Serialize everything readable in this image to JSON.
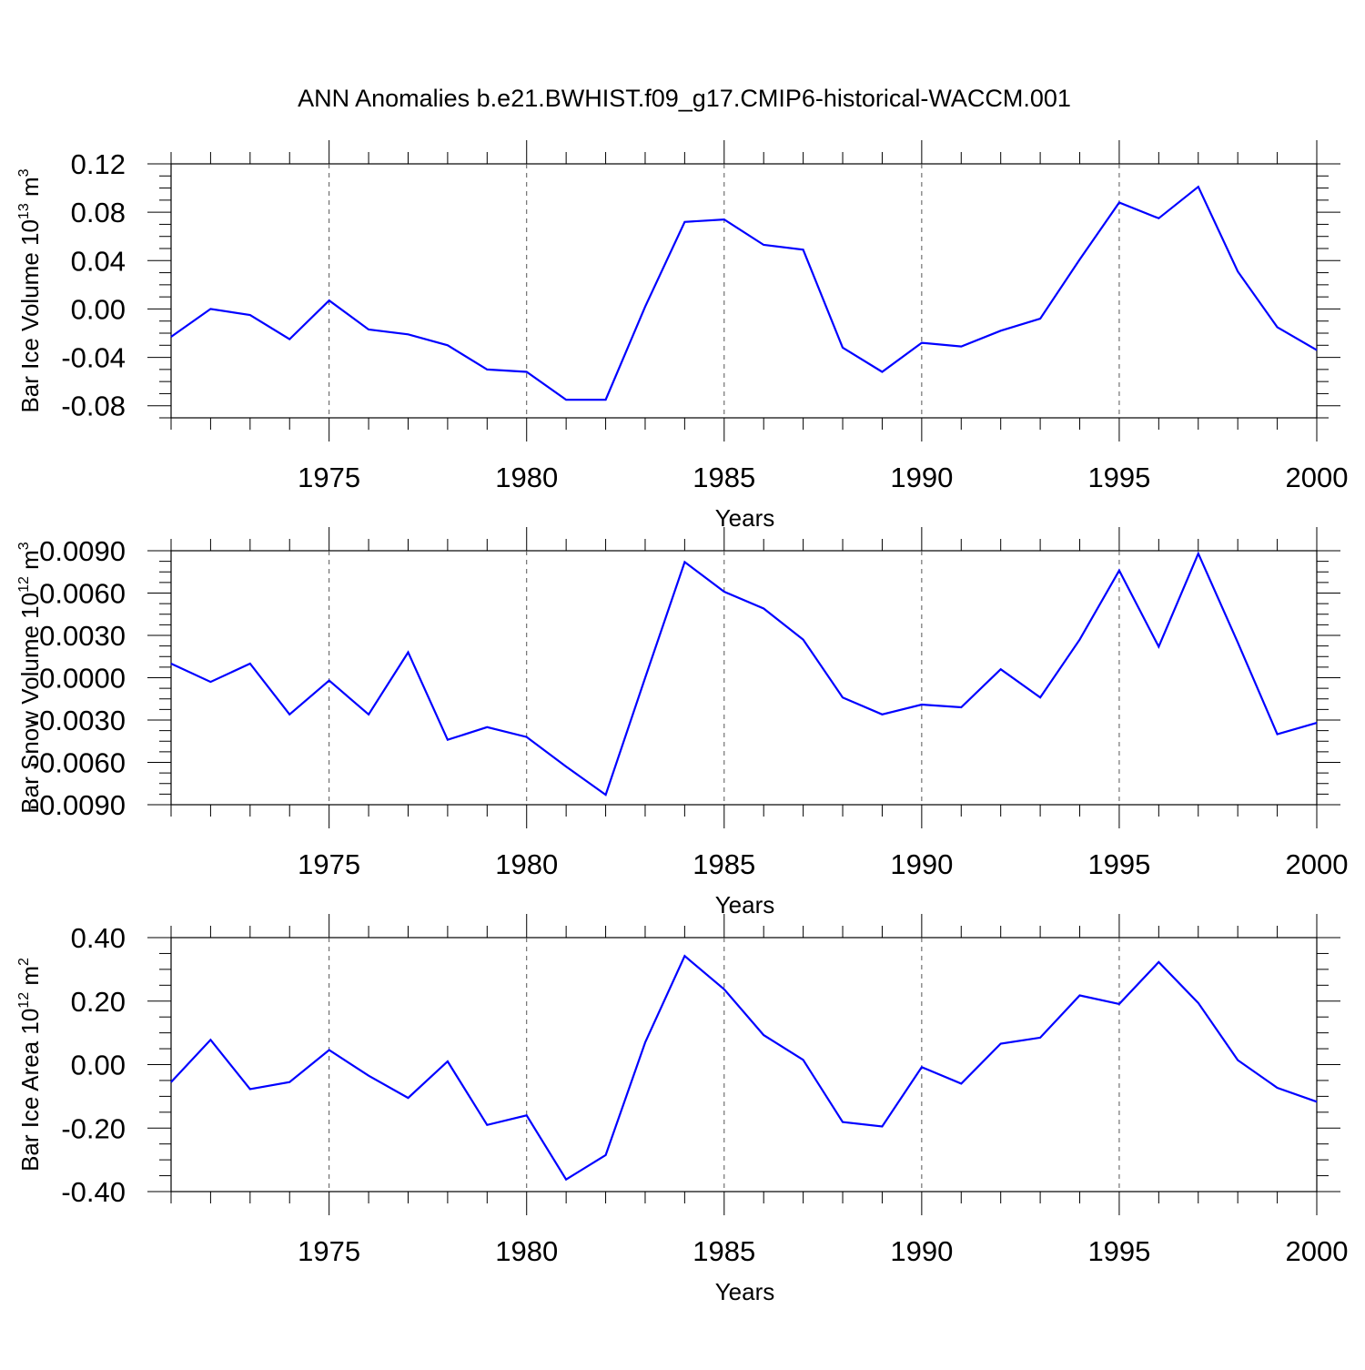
{
  "title": "ANN Anomalies b.e21.BWHIST.f09_g17.CMIP6-historical-WACCM.001",
  "chart_data": [
    {
      "type": "line",
      "ylabel": {
        "main": "Bar Ice Volume 10",
        "exp": "13",
        "unit": " m",
        "unit_exp": "3"
      },
      "xlabel": "Years",
      "xlim": [
        1971,
        2000
      ],
      "ylim": [
        -0.09,
        0.12
      ],
      "yticks": [
        -0.08,
        -0.04,
        0.0,
        0.04,
        0.08,
        0.12
      ],
      "ytick_labels": [
        "-0.08",
        "-0.04",
        "0.00",
        "0.04",
        "0.08",
        "0.12"
      ],
      "xticks": [
        1975,
        1980,
        1985,
        1990,
        1995,
        2000
      ],
      "xtick_labels": [
        "1975",
        "1980",
        "1985",
        "1990",
        "1995",
        "2000"
      ],
      "grid": "vertical dashed at major x ticks",
      "line_color": "#0000ff",
      "series": [
        {
          "x": [
            1971,
            1972,
            1973,
            1974,
            1975,
            1976,
            1977,
            1978,
            1979,
            1980,
            1981,
            1982,
            1983,
            1984,
            1985,
            1986,
            1987,
            1988,
            1989,
            1990,
            1991,
            1992,
            1993,
            1994,
            1995,
            1996,
            1997,
            1998,
            1999,
            2000
          ],
          "y": [
            -0.023,
            0.0,
            -0.005,
            -0.025,
            0.007,
            -0.017,
            -0.021,
            -0.03,
            -0.05,
            -0.052,
            -0.075,
            -0.075,
            0.002,
            0.072,
            0.074,
            0.053,
            0.049,
            -0.032,
            -0.052,
            -0.028,
            -0.031,
            -0.018,
            -0.008,
            0.041,
            0.088,
            0.075,
            0.101,
            0.031,
            -0.015,
            -0.034
          ]
        }
      ]
    },
    {
      "type": "line",
      "ylabel": {
        "main": "Bar Snow Volume 10",
        "exp": "12",
        "unit": " m",
        "unit_exp": "3"
      },
      "xlabel": "Years",
      "xlim": [
        1971,
        2000
      ],
      "ylim": [
        -0.009,
        0.009
      ],
      "yticks": [
        -0.009,
        -0.006,
        -0.003,
        0.0,
        0.003,
        0.006,
        0.009
      ],
      "ytick_labels": [
        "-0.0090",
        "-0.0060",
        "-0.0030",
        "0.0000",
        "0.0030",
        "0.0060",
        "0.0090"
      ],
      "xticks": [
        1975,
        1980,
        1985,
        1990,
        1995,
        2000
      ],
      "xtick_labels": [
        "1975",
        "1980",
        "1985",
        "1990",
        "1995",
        "2000"
      ],
      "grid": "vertical dashed at major x ticks",
      "line_color": "#0000ff",
      "series": [
        {
          "x": [
            1971,
            1972,
            1973,
            1974,
            1975,
            1976,
            1977,
            1978,
            1979,
            1980,
            1981,
            1982,
            1983,
            1984,
            1985,
            1986,
            1987,
            1988,
            1989,
            1990,
            1991,
            1992,
            1993,
            1994,
            1995,
            1996,
            1997,
            1998,
            1999,
            2000
          ],
          "y": [
            0.001,
            -0.0003,
            0.001,
            -0.0026,
            -0.0002,
            -0.0026,
            0.0018,
            -0.0044,
            -0.0035,
            -0.0042,
            -0.0063,
            -0.0083,
            0.0,
            0.0082,
            0.0061,
            0.0049,
            0.0027,
            -0.0014,
            -0.0026,
            -0.0019,
            -0.0021,
            0.0006,
            -0.0014,
            0.0027,
            0.0076,
            0.0022,
            0.0088,
            0.0025,
            -0.004,
            -0.0032
          ]
        }
      ]
    },
    {
      "type": "line",
      "ylabel": {
        "main": "Bar Ice Area 10",
        "exp": "12",
        "unit": " m",
        "unit_exp": "2"
      },
      "xlabel": "Years",
      "xlim": [
        1971,
        2000
      ],
      "ylim": [
        -0.4,
        0.4
      ],
      "yticks": [
        -0.4,
        -0.2,
        0.0,
        0.2,
        0.4
      ],
      "ytick_labels": [
        "-0.40",
        "-0.20",
        "0.00",
        "0.20",
        "0.40"
      ],
      "xticks": [
        1975,
        1980,
        1985,
        1990,
        1995,
        2000
      ],
      "xtick_labels": [
        "1975",
        "1980",
        "1985",
        "1990",
        "1995",
        "2000"
      ],
      "grid": "vertical dashed at major x ticks",
      "line_color": "#0000ff",
      "series": [
        {
          "x": [
            1971,
            1972,
            1973,
            1974,
            1975,
            1976,
            1977,
            1978,
            1979,
            1980,
            1981,
            1982,
            1983,
            1984,
            1985,
            1986,
            1987,
            1988,
            1989,
            1990,
            1991,
            1992,
            1993,
            1994,
            1995,
            1996,
            1997,
            1998,
            1999,
            2000
          ],
          "y": [
            -0.055,
            0.078,
            -0.077,
            -0.055,
            0.046,
            -0.035,
            -0.105,
            0.01,
            -0.19,
            -0.16,
            -0.362,
            -0.285,
            0.07,
            0.342,
            0.237,
            0.093,
            0.015,
            -0.181,
            -0.195,
            -0.008,
            -0.06,
            0.066,
            0.085,
            0.218,
            0.191,
            0.323,
            0.194,
            0.014,
            -0.073,
            -0.117
          ]
        }
      ]
    }
  ]
}
